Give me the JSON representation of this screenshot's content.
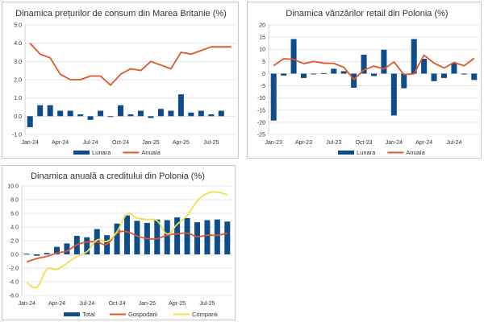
{
  "colors": {
    "bar": "#0f4c8a",
    "line_orange": "#e3562a",
    "line_yellow": "#f0e04a",
    "grid": "#e6e6e6",
    "zero_line_orange": "#e9a58a"
  },
  "chart_data": [
    {
      "type": "bar",
      "id": "uk-cpi",
      "title": "Dinamica prețurilor de consum din Marea Britanie (%)",
      "xlabel": "",
      "ylabel": "",
      "ylim": [
        -1.0,
        5.0
      ],
      "yticks": [
        "-1.0",
        "0.0",
        "1.0",
        "2.0",
        "3.0",
        "4.0",
        "5.0"
      ],
      "ytick_values": [
        -1,
        0,
        1,
        2,
        3,
        4,
        5
      ],
      "grid": true,
      "legend_position": "bottom",
      "categories": [
        "Jan-24",
        "Feb-24",
        "Mar-24",
        "Apr-24",
        "May-24",
        "Jun-24",
        "Jul-24",
        "Aug-24",
        "Sep-24",
        "Oct-24",
        "Nov-24",
        "Dec-24",
        "Jan-25",
        "Feb-25",
        "Mar-25",
        "Apr-25",
        "May-25",
        "Jun-25",
        "Jul-25",
        "Aug-25",
        "Sep-25"
      ],
      "xtick_labels": [
        "Jan-24",
        "Apr-24",
        "Jul-24",
        "Oct-24",
        "Jan-25",
        "Apr-25",
        "Jul-25"
      ],
      "series": [
        {
          "name": "Lunara",
          "kind": "bar",
          "values": [
            -0.6,
            0.6,
            0.6,
            0.3,
            0.3,
            0.1,
            -0.2,
            0.3,
            0.0,
            0.6,
            0.1,
            0.3,
            -0.1,
            0.4,
            0.3,
            1.2,
            0.2,
            0.3,
            0.1,
            0.3,
            null
          ]
        },
        {
          "name": "Anuala",
          "kind": "line",
          "values": [
            4.0,
            3.4,
            3.2,
            2.3,
            2.0,
            2.0,
            2.2,
            2.2,
            1.7,
            2.3,
            2.6,
            2.5,
            3.0,
            2.8,
            2.6,
            3.5,
            3.4,
            3.6,
            3.8,
            3.8,
            3.8
          ]
        }
      ]
    },
    {
      "type": "bar",
      "id": "pl-retail",
      "title": "Dinamica vânzărilor retail din Polonia (%)",
      "xlabel": "",
      "ylabel": "",
      "ylim": [
        -25,
        20
      ],
      "yticks": [
        "-25",
        "-20",
        "-15",
        "-10",
        "-5",
        "0",
        "5",
        "10",
        "15",
        "20"
      ],
      "ytick_values": [
        -25,
        -20,
        -15,
        -10,
        -5,
        0,
        5,
        10,
        15,
        20
      ],
      "grid": true,
      "legend_position": "bottom",
      "categories": [
        "Jan-23",
        "Feb-23",
        "Mar-23",
        "Apr-23",
        "May-23",
        "Jun-23",
        "Jul-23",
        "Aug-23",
        "Sep-23",
        "Oct-23",
        "Nov-23",
        "Dec-23",
        "Jan-24",
        "Feb-24",
        "Mar-24",
        "Apr-24",
        "May-24",
        "Jun-24",
        "Jul-24",
        "Aug-24",
        "Sep-24"
      ],
      "xtick_labels": [
        "Jan-23",
        "Apr-23",
        "Jul-23",
        "Oct-23",
        "Jan-24",
        "Apr-24",
        "Jul-24"
      ],
      "series": [
        {
          "name": "Lunara",
          "kind": "bar",
          "values": [
            -19.3,
            -0.8,
            14.2,
            -1.8,
            0.0,
            0.2,
            2.0,
            1.0,
            -5.8,
            7.8,
            -1.0,
            9.8,
            -17.2,
            -6.0,
            14.2,
            6.1,
            -3.1,
            -1.8,
            4.5,
            -0.3,
            -2.6
          ]
        },
        {
          "name": "Anuala",
          "kind": "line",
          "values": [
            3.3,
            6.1,
            5.9,
            4.1,
            5.0,
            4.3,
            4.2,
            2.6,
            -2.4,
            1.5,
            3.1,
            1.9,
            4.8,
            -0.4,
            -0.1,
            7.6,
            4.3,
            2.3,
            4.6,
            3.2,
            6.3
          ]
        }
      ]
    },
    {
      "type": "bar",
      "id": "pl-credit",
      "title": "Dinamica anuală a creditului din Polonia (%)",
      "xlabel": "",
      "ylabel": "",
      "ylim": [
        -6.0,
        10.0
      ],
      "yticks": [
        "-6.0",
        "-4.0",
        "-2.0",
        "0.0",
        "2.0",
        "4.0",
        "6.0",
        "8.0",
        "10.0"
      ],
      "ytick_values": [
        -6,
        -4,
        -2,
        0,
        2,
        4,
        6,
        8,
        10
      ],
      "grid": true,
      "legend_position": "bottom",
      "categories": [
        "Jan-24",
        "Feb-24",
        "Mar-24",
        "Apr-24",
        "May-24",
        "Jun-24",
        "Jul-24",
        "Aug-24",
        "Sep-24",
        "Oct-24",
        "Nov-24",
        "Dec-24",
        "Jan-25",
        "Feb-25",
        "Mar-25",
        "Apr-25",
        "May-25",
        "Jun-25",
        "Jul-25",
        "Aug-25",
        "Sep-25"
      ],
      "xtick_labels": [
        "Jan-24",
        "Apr-24",
        "Jul-24",
        "Oct-24",
        "Jan-25",
        "Apr-25",
        "Jul-25"
      ],
      "series": [
        {
          "name": "Total",
          "kind": "bar",
          "values": [
            0.1,
            -0.2,
            0.2,
            1.1,
            1.6,
            2.7,
            2.5,
            3.7,
            2.8,
            4.5,
            5.7,
            4.9,
            4.6,
            5.1,
            5.0,
            5.4,
            5.3,
            4.7,
            5.0,
            5.1,
            4.8
          ]
        },
        {
          "name": "Gospodarii",
          "kind": "line",
          "color_key": "line_orange",
          "values": [
            -1.1,
            -0.6,
            -0.3,
            0.2,
            0.5,
            1.4,
            1.8,
            1.8,
            1.5,
            3.1,
            3.3,
            2.7,
            2.3,
            2.3,
            2.8,
            3.0,
            3.1,
            2.6,
            2.8,
            2.8,
            3.1
          ]
        },
        {
          "name": "Companii",
          "kind": "line",
          "color_key": "line_yellow",
          "values": [
            -4.1,
            -4.8,
            -2.2,
            -2.2,
            -1.3,
            -0.3,
            0.4,
            2.1,
            1.9,
            3.3,
            5.9,
            5.3,
            5.1,
            4.9,
            3.0,
            4.4,
            5.7,
            7.8,
            8.9,
            9.1,
            8.7
          ]
        }
      ]
    }
  ]
}
